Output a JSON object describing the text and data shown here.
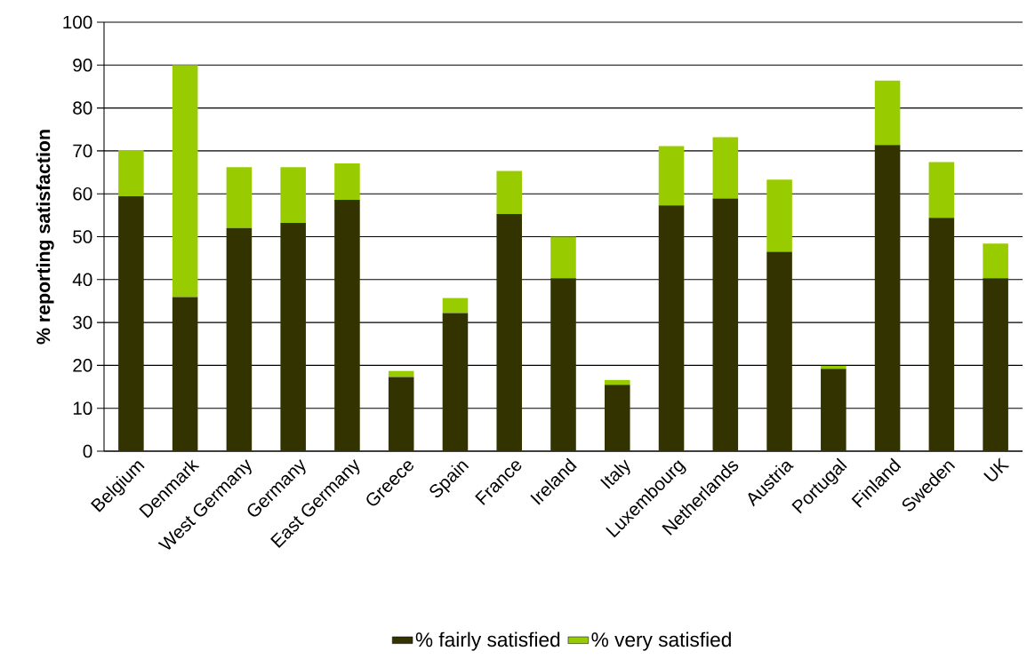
{
  "chart_data": {
    "type": "bar",
    "stacked": true,
    "ylabel": "% reporting satisfaction",
    "categories": [
      "Belgium",
      "Denmark",
      "West Germany",
      "Germany",
      "East Germany",
      "Greece",
      "Spain",
      "France",
      "Ireland",
      "Italy",
      "Luxembourg",
      "Netherlands",
      "Austria",
      "Portugal",
      "Finland",
      "Sweden",
      "UK"
    ],
    "series": [
      {
        "name": "% fairly satisfied",
        "color": "#333300",
        "values": [
          59.4,
          35.9,
          52.0,
          53.2,
          58.6,
          17.3,
          32.2,
          55.3,
          40.3,
          15.5,
          57.3,
          58.9,
          46.5,
          19.2,
          71.4,
          54.4,
          40.3
        ]
      },
      {
        "name": "% very satisfied",
        "color": "#99cc00",
        "values": [
          10.8,
          54.1,
          14.2,
          13.0,
          8.5,
          1.4,
          3.5,
          10.0,
          9.7,
          1.1,
          13.8,
          14.3,
          16.8,
          0.7,
          15.0,
          13.0,
          8.1
        ]
      }
    ],
    "ylim": [
      0,
      100
    ],
    "yticks": [
      0,
      10,
      20,
      30,
      40,
      50,
      60,
      70,
      80,
      90,
      100
    ],
    "grid": "y",
    "legend": "bottom"
  }
}
